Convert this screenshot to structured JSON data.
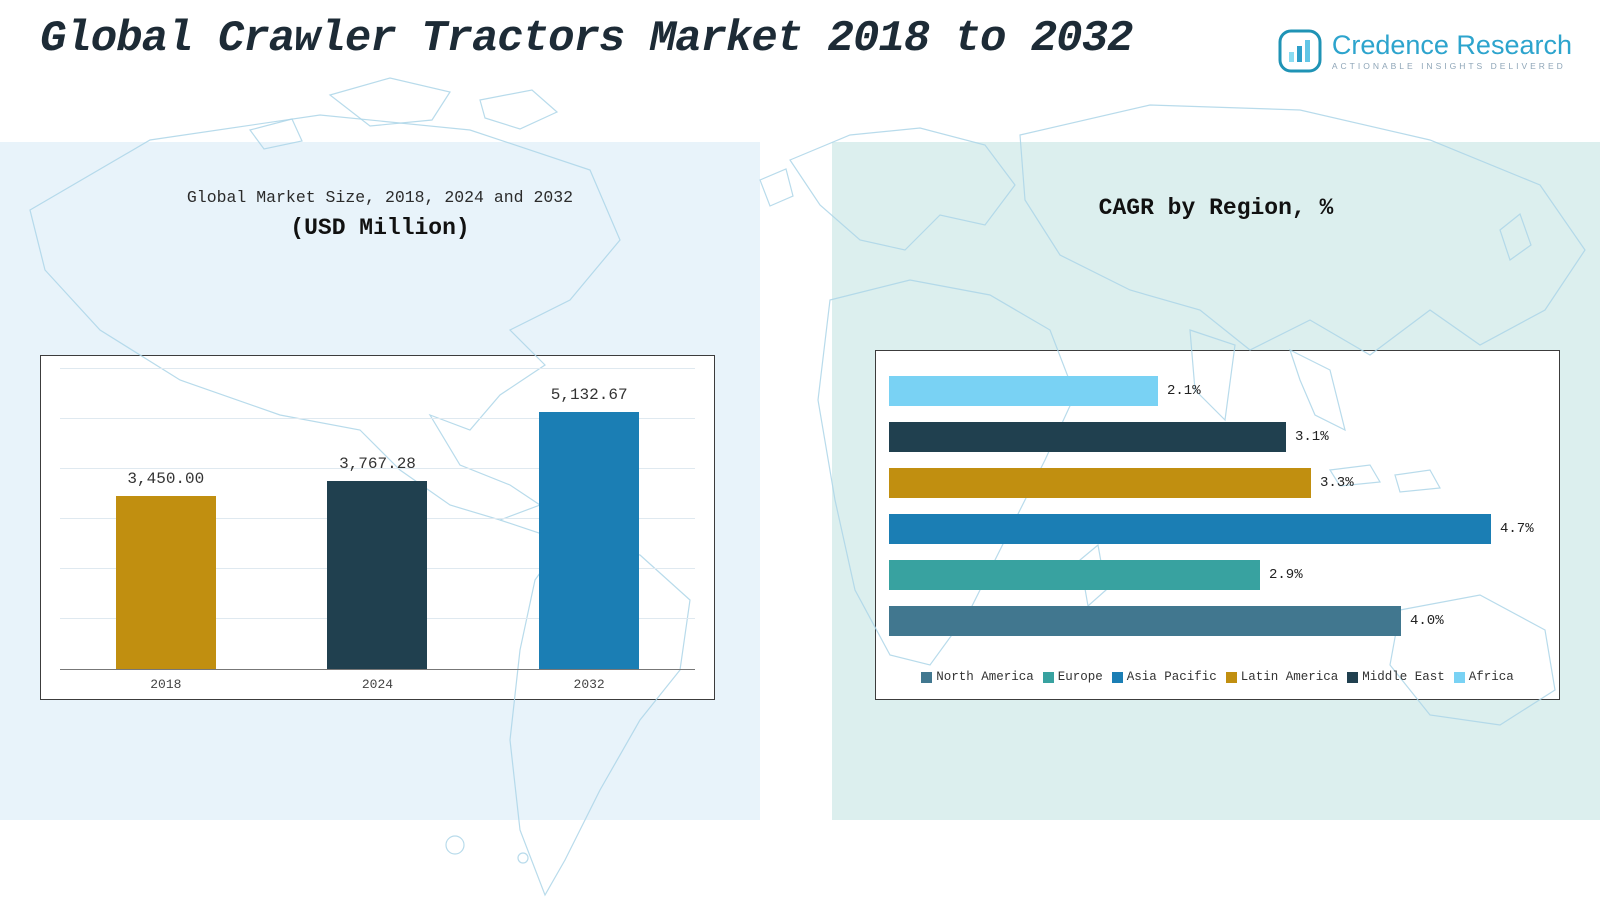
{
  "page": {
    "title": "Global Crawler Tractors Market 2018 to 2032"
  },
  "logo": {
    "name": "Credence Research",
    "tagline": "Actionable Insights Delivered",
    "brand_color": "#2da4cd"
  },
  "chart_data": [
    {
      "type": "bar",
      "title": "Global Market Size, 2018, 2024 and 2032",
      "subtitle": "(USD Million)",
      "categories": [
        "2018",
        "2024",
        "2032"
      ],
      "values": [
        3450.0,
        3767.28,
        5132.67
      ],
      "value_labels": [
        "3,450.00",
        "3,767.28",
        "5,132.67"
      ],
      "colors": [
        "#c18f10",
        "#20404f",
        "#1b7eb4"
      ],
      "xlabel": "",
      "ylabel": "",
      "ylim": [
        0,
        6000
      ],
      "grid": true,
      "legend_position": "none"
    },
    {
      "type": "bar-horizontal",
      "title": "CAGR by Region, %",
      "categories": [
        "Africa",
        "Middle East",
        "Latin America",
        "Asia Pacific",
        "Europe",
        "North America"
      ],
      "values": [
        2.1,
        3.1,
        3.3,
        4.7,
        2.9,
        4.0
      ],
      "value_labels": [
        "2.1%",
        "3.1%",
        "3.3%",
        "4.7%",
        "2.9%",
        "4.0%"
      ],
      "colors": [
        "#79d2f4",
        "#20404f",
        "#c18f10",
        "#1b7eb4",
        "#38a2a0",
        "#41778f"
      ],
      "xlabel": "",
      "ylabel": "",
      "xlim": [
        0,
        5
      ],
      "grid": false,
      "legend_position": "bottom",
      "legend": [
        {
          "label": "North America",
          "color": "#41778f"
        },
        {
          "label": "Europe",
          "color": "#38a2a0"
        },
        {
          "label": "Asia Pacific",
          "color": "#1b7eb4"
        },
        {
          "label": "Latin America",
          "color": "#c18f10"
        },
        {
          "label": "Middle East",
          "color": "#20404f"
        },
        {
          "label": "Africa",
          "color": "#79d2f4"
        }
      ]
    }
  ]
}
